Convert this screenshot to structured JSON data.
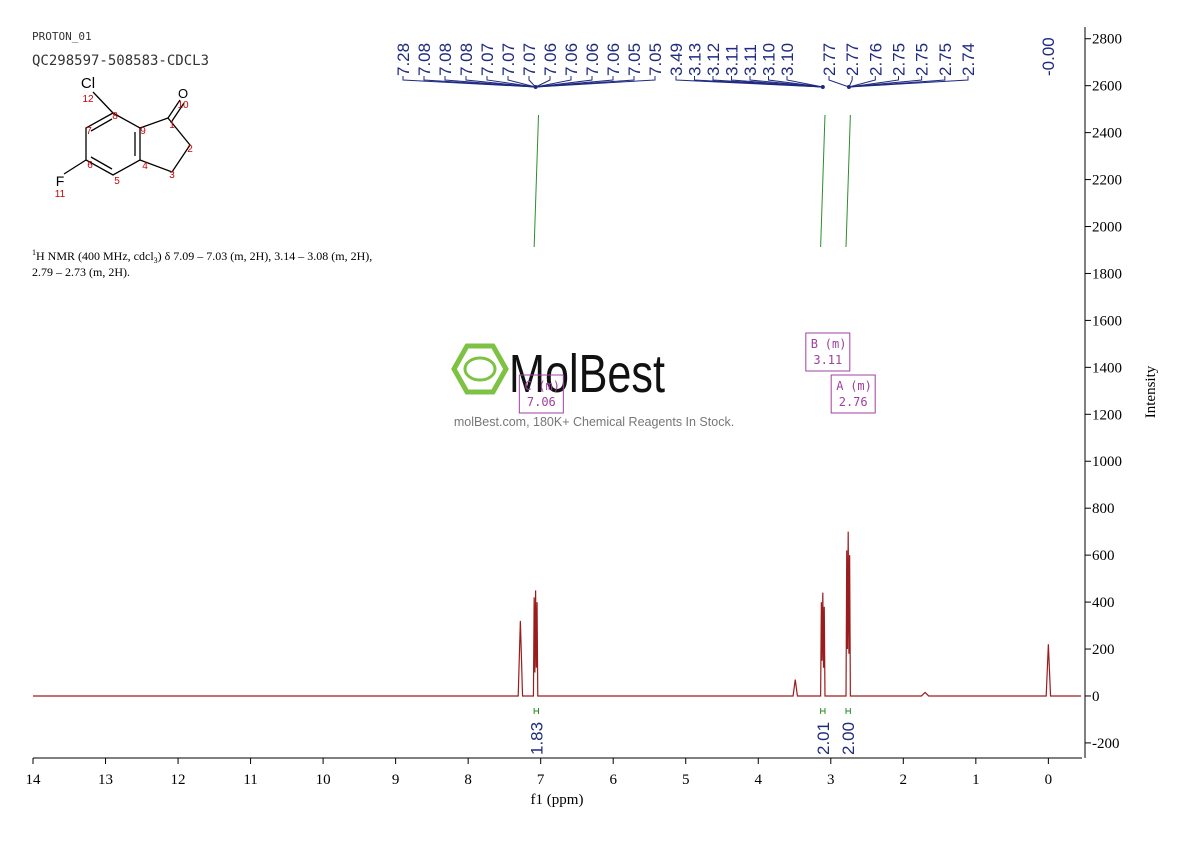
{
  "header": {
    "experiment": "PROTON_01",
    "sample": "QC298597-508583-CDCL3"
  },
  "molecule": {
    "atoms": [
      "Cl",
      "12",
      "O",
      "10",
      "1",
      "2",
      "3",
      "4",
      "5",
      "6",
      "7",
      "8",
      "9",
      "F",
      "11"
    ]
  },
  "nmr_text": [
    "1",
    "H NMR (400 MHz, cdcl",
    "3",
    ") δ 7.09 – 7.03 (m, 2H), 3.14 – 3.08 (m, 2H),",
    "2.79 – 2.73 (m, 2H)."
  ],
  "watermark": {
    "brand": "MolBest",
    "tagline": "molBest.com, 180K+ Chemical Reagents In Stock."
  },
  "chart_data": {
    "type": "line",
    "xlabel": "f1 (ppm)",
    "ylabel": "Intensity",
    "color": "#9b1c1c",
    "x": [
      14,
      7.31,
      7.28,
      7.25,
      7.1,
      7.09,
      7.08,
      7.07,
      7.06,
      7.05,
      7.04,
      3.52,
      3.49,
      3.46,
      3.14,
      3.13,
      3.12,
      3.11,
      3.1,
      3.09,
      3.08,
      2.79,
      2.78,
      2.77,
      2.76,
      2.75,
      2.74,
      2.73,
      1.75,
      1.7,
      1.65,
      0.03,
      0.0,
      -0.03,
      -0.45
    ],
    "values": [
      0,
      0,
      320,
      0,
      0,
      420,
      100,
      450,
      120,
      400,
      0,
      0,
      70,
      0,
      0,
      400,
      150,
      440,
      120,
      380,
      0,
      0,
      620,
      200,
      700,
      180,
      600,
      0,
      0,
      15,
      0,
      0,
      220,
      0,
      0
    ],
    "xlim": [
      14,
      -0.45
    ],
    "ylim": [
      -260,
      2850
    ],
    "xticks": [
      0,
      1,
      2,
      3,
      4,
      5,
      6,
      7,
      8,
      9,
      10,
      11,
      12,
      13,
      14
    ],
    "yticks": [
      -200,
      0,
      200,
      400,
      600,
      800,
      1000,
      1200,
      1400,
      1600,
      1800,
      2000,
      2200,
      2400,
      2600,
      2800
    ],
    "peak_labels": [
      [
        "7.28",
        "7.08",
        "7.08",
        "7.08",
        "7.07",
        "7.07",
        "7.07",
        "7.06",
        "7.06",
        "7.06",
        "7.06",
        "7.05",
        "7.05"
      ],
      [
        "3.49",
        "3.13",
        "3.12",
        "3.11",
        "3.11",
        "3.10",
        "3.10"
      ],
      [
        "2.77",
        "2.77",
        "2.76",
        "2.75",
        "2.75",
        "2.75",
        "2.74"
      ],
      [
        "-0.00"
      ]
    ],
    "integrals": [
      {
        "range": [
          7.09,
          7.03
        ],
        "value": 1.83
      },
      {
        "range": [
          3.14,
          3.08
        ],
        "value": 2.01
      },
      {
        "range": [
          2.79,
          2.73
        ],
        "value": {
          "value": 2,
          "label": "2.00"
        }
      }
    ],
    "multiplets": [
      {
        "name": "C",
        "kind": "(m)",
        "shift": 7.06
      },
      {
        "name": "B",
        "kind": "(m)",
        "shift": 3.11
      },
      {
        "name": "A",
        "kind": "(m)",
        "shift": 2.76
      }
    ],
    "peak_color": "#1f2a80",
    "integral_color": "#2e8b2e",
    "multiplet_color": "#a040a0"
  }
}
